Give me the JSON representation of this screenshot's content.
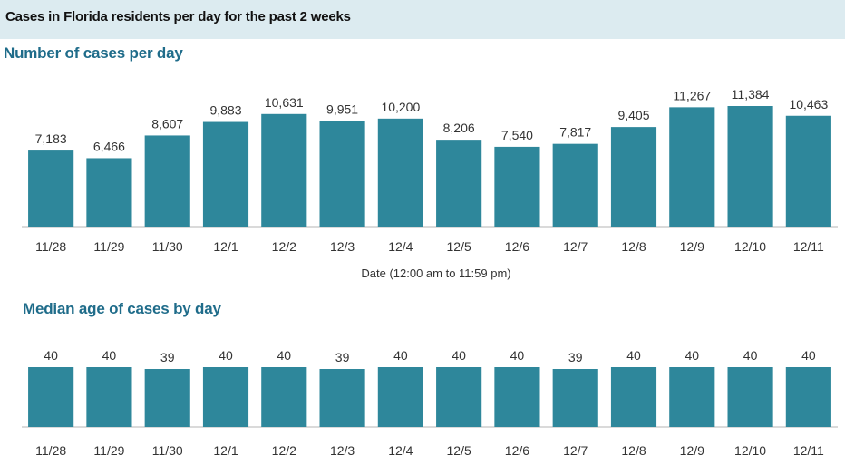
{
  "header": {
    "title": "Cases in Florida residents per day for the past 2 weeks"
  },
  "colors": {
    "bar": "#2e879b",
    "header_bg": "#dcebf0",
    "section_title": "#1f6c8a",
    "axis_line": "#b5b5b5"
  },
  "chart_data": [
    {
      "type": "bar",
      "title": "Number of cases per day",
      "categories": [
        "11/28",
        "11/29",
        "11/30",
        "12/1",
        "12/2",
        "12/3",
        "12/4",
        "12/5",
        "12/6",
        "12/7",
        "12/8",
        "12/9",
        "12/10",
        "12/11"
      ],
      "values": [
        7183,
        6466,
        8607,
        9883,
        10631,
        9951,
        10200,
        8206,
        7540,
        7817,
        9405,
        11267,
        11384,
        10463
      ],
      "value_labels": [
        "7,183",
        "6,466",
        "8,607",
        "9,883",
        "10,631",
        "9,951",
        "10,200",
        "8,206",
        "7,540",
        "7,817",
        "9,405",
        "11,267",
        "11,384",
        "10,463"
      ],
      "xlabel": "Date (12:00 am to 11:59 pm)",
      "ylabel": "",
      "ylim": [
        0,
        11384
      ],
      "grid": false,
      "legend": "none"
    },
    {
      "type": "bar",
      "title": "Median age of cases by day",
      "categories": [
        "11/28",
        "11/29",
        "11/30",
        "12/1",
        "12/2",
        "12/3",
        "12/4",
        "12/5",
        "12/6",
        "12/7",
        "12/8",
        "12/9",
        "12/10",
        "12/11"
      ],
      "values": [
        40,
        40,
        39,
        40,
        40,
        39,
        40,
        40,
        40,
        39,
        40,
        40,
        40,
        40
      ],
      "value_labels": [
        "40",
        "40",
        "39",
        "40",
        "40",
        "39",
        "40",
        "40",
        "40",
        "39",
        "40",
        "40",
        "40",
        "40"
      ],
      "xlabel": "",
      "ylabel": "",
      "ylim": [
        0,
        40
      ],
      "grid": false,
      "legend": "none"
    }
  ]
}
